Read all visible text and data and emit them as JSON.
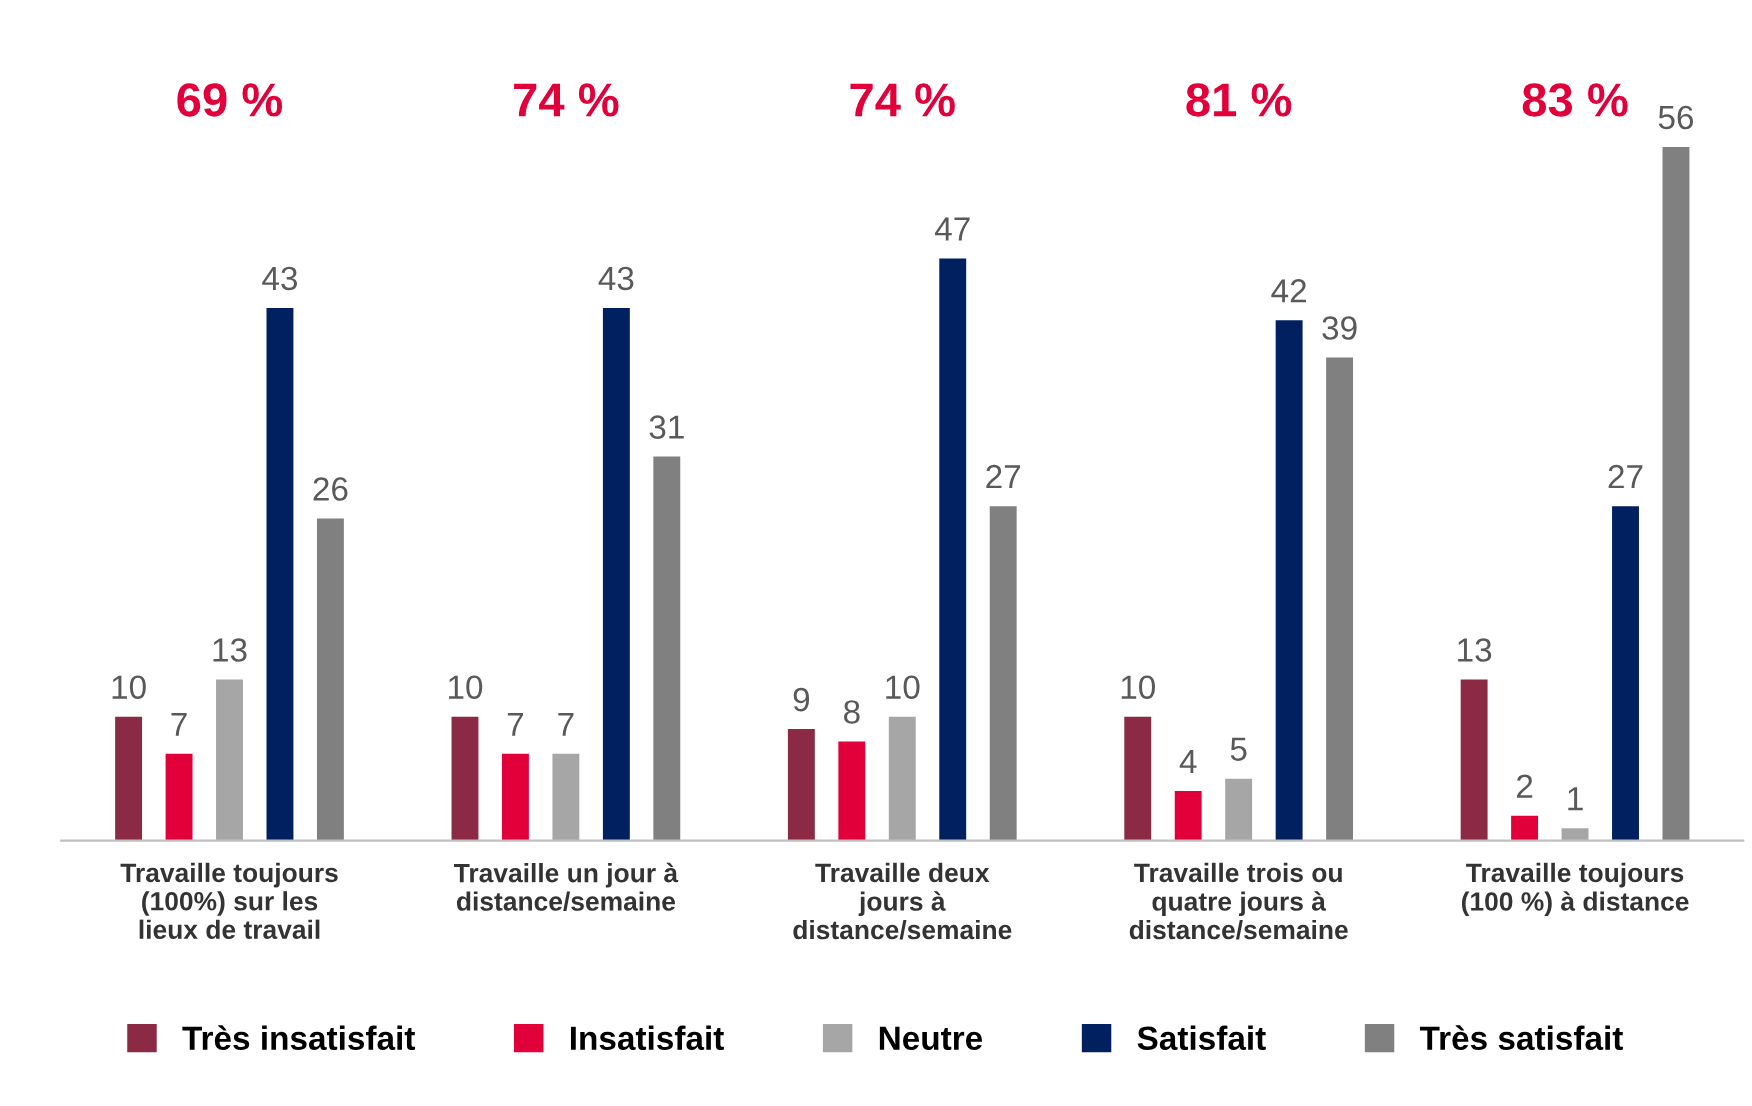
{
  "chart_data": {
    "type": "bar",
    "categories": [
      "Travaille toujours\n(100%) sur les\nlieux de travail",
      "Travaille un jour à\ndistance/semaine",
      "Travaille deux\njours à\ndistance/semaine",
      "Travaille trois ou\nquatre jours à\ndistance/semaine",
      "Travaille toujours\n(100 %) à distance"
    ],
    "series": [
      {
        "name": "Très insatisfait",
        "color": "#8c2a45",
        "values": [
          10,
          10,
          9,
          10,
          13
        ]
      },
      {
        "name": "Insatisfait",
        "color": "#e2003b",
        "values": [
          7,
          7,
          8,
          4,
          2
        ]
      },
      {
        "name": "Neutre",
        "color": "#a6a6a6",
        "values": [
          13,
          7,
          10,
          5,
          1
        ]
      },
      {
        "name": "Satisfait",
        "color": "#002060",
        "values": [
          43,
          43,
          47,
          42,
          27
        ]
      },
      {
        "name": "Très satisfait",
        "color": "#808080",
        "values": [
          26,
          31,
          27,
          39,
          56
        ]
      }
    ],
    "annotations": [
      "69 %",
      "74 %",
      "74 %",
      "81 %",
      "83 %"
    ],
    "data_labels": true,
    "legend": "bottom",
    "grid": false
  }
}
